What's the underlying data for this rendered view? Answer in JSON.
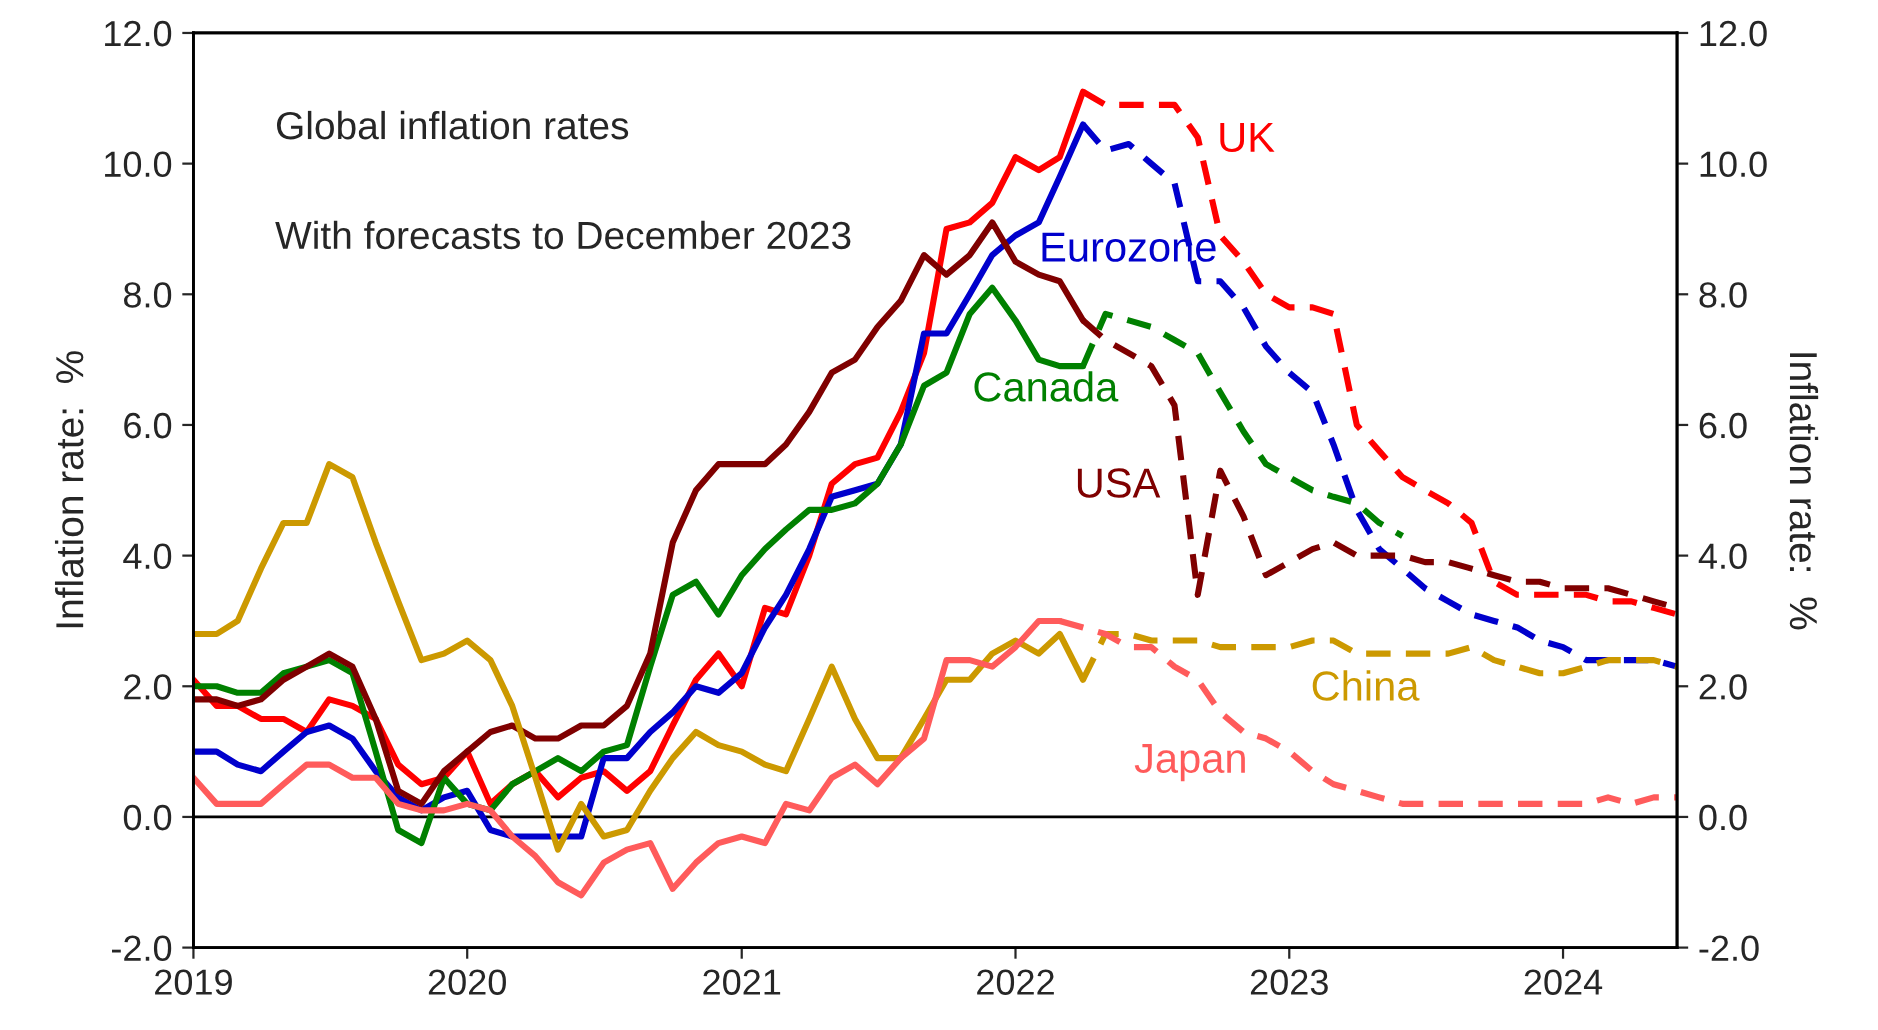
{
  "chart_data": {
    "type": "line",
    "title": "Global inflation rates",
    "subtitle": "With forecasts to December 2023",
    "ylabel": "Inflation rate:  %",
    "y2label": "Inflation rate:  %",
    "x": [
      "2019-01",
      "2019-02",
      "2019-03",
      "2019-04",
      "2019-05",
      "2019-06",
      "2019-07",
      "2019-08",
      "2019-09",
      "2019-10",
      "2019-11",
      "2019-12",
      "2020-01",
      "2020-02",
      "2020-03",
      "2020-04",
      "2020-05",
      "2020-06",
      "2020-07",
      "2020-08",
      "2020-09",
      "2020-10",
      "2020-11",
      "2020-12",
      "2021-01",
      "2021-02",
      "2021-03",
      "2021-04",
      "2021-05",
      "2021-06",
      "2021-07",
      "2021-08",
      "2021-09",
      "2021-10",
      "2021-11",
      "2021-12",
      "2022-01",
      "2022-02",
      "2022-03",
      "2022-04",
      "2022-05",
      "2022-06",
      "2022-07",
      "2022-08",
      "2022-09",
      "2022-10",
      "2022-11",
      "2022-12",
      "2023-01",
      "2023-02",
      "2023-03",
      "2023-04",
      "2023-05",
      "2023-06",
      "2023-07",
      "2023-08",
      "2023-09",
      "2023-10",
      "2023-11",
      "2023-12",
      "2024-01",
      "2024-02",
      "2024-03",
      "2024-04",
      "2024-05",
      "2024-06"
    ],
    "series": [
      {
        "name": "UK",
        "color": "#ff0000",
        "line_style": "solid",
        "values": [
          2.1,
          1.7,
          1.7,
          1.5,
          1.5,
          1.3,
          1.8,
          1.7,
          1.5,
          0.8,
          0.5,
          0.6,
          1.0,
          0.2,
          0.5,
          0.7,
          0.3,
          0.6,
          0.7,
          0.4,
          0.7,
          1.4,
          2.1,
          2.5,
          2.0,
          3.2,
          3.1,
          4.0,
          5.1,
          5.4,
          5.5,
          6.2,
          7.1,
          9.0,
          9.1,
          9.4,
          10.1,
          9.9,
          10.1,
          11.1,
          null,
          null,
          null,
          null,
          null,
          null,
          null,
          null,
          null,
          null,
          null,
          null,
          null,
          null,
          null,
          null,
          null,
          null,
          null,
          null,
          null,
          null,
          null,
          null,
          null,
          null
        ]
      },
      {
        "name": "Eurozone",
        "color": "#0000cc",
        "line_style": "solid",
        "values": [
          1.0,
          1.0,
          0.8,
          0.7,
          1.0,
          1.3,
          1.4,
          1.2,
          0.7,
          0.3,
          0.1,
          0.3,
          0.4,
          -0.2,
          -0.3,
          -0.3,
          -0.3,
          -0.3,
          0.9,
          0.9,
          1.3,
          1.6,
          2.0,
          1.9,
          2.2,
          2.9,
          3.4,
          4.1,
          4.9,
          5.0,
          5.1,
          5.7,
          7.4,
          7.4,
          8.0,
          8.6,
          8.9,
          9.1,
          9.8,
          10.6,
          null,
          null,
          null,
          null,
          null,
          null,
          null,
          null,
          null,
          null,
          null,
          null,
          null,
          null,
          null,
          null,
          null,
          null,
          null,
          null,
          null,
          null,
          null,
          null,
          null,
          null
        ]
      },
      {
        "name": "Canada",
        "color": "#008000",
        "line_style": "solid",
        "values": [
          2.0,
          2.0,
          1.9,
          1.9,
          2.2,
          2.3,
          2.4,
          2.2,
          1.0,
          -0.2,
          -0.4,
          0.6,
          0.2,
          0.1,
          0.5,
          0.7,
          0.9,
          0.7,
          1.0,
          1.1,
          2.3,
          3.4,
          3.6,
          3.1,
          3.7,
          4.1,
          4.4,
          4.7,
          4.7,
          4.8,
          5.1,
          5.7,
          6.6,
          6.8,
          7.7,
          8.1,
          7.6,
          7.0,
          6.9,
          6.9,
          null,
          null,
          null,
          null,
          null,
          null,
          null,
          null,
          null,
          null,
          null,
          null,
          null,
          null,
          null,
          null,
          null,
          null,
          null,
          null,
          null,
          null,
          null,
          null,
          null,
          null
        ]
      },
      {
        "name": "USA",
        "color": "#7f0000",
        "line_style": "solid",
        "values": [
          1.8,
          1.8,
          1.7,
          1.8,
          2.1,
          2.3,
          2.5,
          2.3,
          1.5,
          0.4,
          0.2,
          0.7,
          1.0,
          1.3,
          1.4,
          1.2,
          1.2,
          1.4,
          1.4,
          1.7,
          2.5,
          4.2,
          5.0,
          5.4,
          5.4,
          5.4,
          5.7,
          6.2,
          6.8,
          7.0,
          7.5,
          7.9,
          8.6,
          8.3,
          8.6,
          9.1,
          8.5,
          8.3,
          8.2,
          7.6,
          null,
          null,
          null,
          null,
          null,
          null,
          null,
          null,
          null,
          null,
          null,
          null,
          null,
          null,
          null,
          null,
          null,
          null,
          null,
          null,
          null,
          null,
          null,
          null,
          null,
          null
        ]
      },
      {
        "name": "China",
        "color": "#cc9900",
        "line_style": "solid",
        "values": [
          2.8,
          2.8,
          3.0,
          3.8,
          4.5,
          4.5,
          5.4,
          5.2,
          4.2,
          3.3,
          2.4,
          2.5,
          2.7,
          2.4,
          1.7,
          0.6,
          -0.5,
          0.2,
          -0.3,
          -0.2,
          0.4,
          0.9,
          1.3,
          1.1,
          1.0,
          0.8,
          0.7,
          1.5,
          2.3,
          1.5,
          0.9,
          0.9,
          1.5,
          2.1,
          2.1,
          2.5,
          2.7,
          2.5,
          2.8,
          2.1,
          null,
          null,
          null,
          null,
          null,
          null,
          null,
          null,
          null,
          null,
          null,
          null,
          null,
          null,
          null,
          null,
          null,
          null,
          null,
          null,
          null,
          null,
          null,
          null,
          null,
          null
        ]
      },
      {
        "name": "Japan",
        "color": "#ff5b5b",
        "line_style": "solid",
        "values": [
          0.6,
          0.2,
          0.2,
          0.2,
          0.5,
          0.8,
          0.8,
          0.6,
          0.6,
          0.2,
          0.1,
          0.1,
          0.2,
          0.1,
          -0.3,
          -0.6,
          -1.0,
          -1.2,
          -0.7,
          -0.5,
          -0.4,
          -1.1,
          -0.7,
          -0.4,
          -0.3,
          -0.4,
          0.2,
          0.1,
          0.6,
          0.8,
          0.5,
          0.9,
          1.2,
          2.4,
          2.4,
          2.3,
          2.6,
          3.0,
          3.0,
          null,
          null,
          null,
          null,
          null,
          null,
          null,
          null,
          null,
          null,
          null,
          null,
          null,
          null,
          null,
          null,
          null,
          null,
          null,
          null,
          null,
          null,
          null,
          null,
          null,
          null,
          null
        ]
      },
      {
        "color": "#ff0000",
        "line_style": "dashed",
        "values": [
          null,
          null,
          null,
          null,
          null,
          null,
          null,
          null,
          null,
          null,
          null,
          null,
          null,
          null,
          null,
          null,
          null,
          null,
          null,
          null,
          null,
          null,
          null,
          null,
          null,
          null,
          null,
          null,
          null,
          null,
          null,
          null,
          null,
          null,
          null,
          null,
          null,
          null,
          null,
          11.1,
          10.9,
          10.9,
          10.9,
          10.9,
          10.4,
          8.9,
          8.5,
          8.0,
          7.8,
          7.8,
          7.7,
          6.0,
          5.6,
          5.2,
          5.0,
          4.8,
          4.5,
          3.6,
          3.4,
          3.4,
          3.4,
          3.4,
          3.3,
          3.3,
          3.2,
          3.1
        ]
      },
      {
        "color": "#0000cc",
        "line_style": "dashed",
        "values": [
          null,
          null,
          null,
          null,
          null,
          null,
          null,
          null,
          null,
          null,
          null,
          null,
          null,
          null,
          null,
          null,
          null,
          null,
          null,
          null,
          null,
          null,
          null,
          null,
          null,
          null,
          null,
          null,
          null,
          null,
          null,
          null,
          null,
          null,
          null,
          null,
          null,
          null,
          null,
          10.6,
          10.2,
          10.3,
          10.0,
          9.7,
          8.2,
          8.2,
          7.8,
          7.2,
          6.8,
          6.5,
          5.7,
          4.7,
          4.1,
          3.8,
          3.5,
          3.3,
          3.1,
          3.0,
          2.9,
          2.7,
          2.6,
          2.4,
          2.4,
          2.4,
          2.4,
          2.3
        ]
      },
      {
        "color": "#008000",
        "line_style": "dashed",
        "values": [
          null,
          null,
          null,
          null,
          null,
          null,
          null,
          null,
          null,
          null,
          null,
          null,
          null,
          null,
          null,
          null,
          null,
          null,
          null,
          null,
          null,
          null,
          null,
          null,
          null,
          null,
          null,
          null,
          null,
          null,
          null,
          null,
          null,
          null,
          null,
          null,
          null,
          null,
          null,
          6.9,
          7.7,
          7.6,
          7.5,
          7.3,
          7.1,
          6.5,
          5.9,
          5.4,
          5.2,
          5.0,
          4.9,
          4.8,
          4.5,
          4.3,
          null,
          null,
          null,
          null,
          null,
          null,
          null,
          null,
          null,
          null,
          null,
          null
        ]
      },
      {
        "color": "#7f0000",
        "line_style": "dashed",
        "values": [
          null,
          null,
          null,
          null,
          null,
          null,
          null,
          null,
          null,
          null,
          null,
          null,
          null,
          null,
          null,
          null,
          null,
          null,
          null,
          null,
          null,
          null,
          null,
          null,
          null,
          null,
          null,
          null,
          null,
          null,
          null,
          null,
          null,
          null,
          null,
          null,
          null,
          null,
          null,
          7.6,
          7.3,
          7.1,
          6.9,
          6.3,
          3.4,
          5.3,
          4.6,
          3.7,
          3.9,
          4.1,
          4.2,
          4.0,
          4.0,
          4.0,
          3.9,
          3.9,
          3.8,
          3.7,
          3.6,
          3.6,
          3.5,
          3.5,
          3.5,
          3.4,
          3.3,
          3.2
        ]
      },
      {
        "color": "#cc9900",
        "line_style": "dashed",
        "values": [
          null,
          null,
          null,
          null,
          null,
          null,
          null,
          null,
          null,
          null,
          null,
          null,
          null,
          null,
          null,
          null,
          null,
          null,
          null,
          null,
          null,
          null,
          null,
          null,
          null,
          null,
          null,
          null,
          null,
          null,
          null,
          null,
          null,
          null,
          null,
          null,
          null,
          null,
          null,
          2.1,
          2.8,
          2.8,
          2.7,
          2.7,
          2.7,
          2.6,
          2.6,
          2.6,
          2.6,
          2.7,
          2.7,
          2.5,
          2.5,
          2.5,
          2.5,
          2.5,
          2.6,
          2.4,
          2.3,
          2.2,
          2.2,
          2.3,
          2.4,
          2.4,
          2.4,
          2.3
        ]
      },
      {
        "color": "#ff5b5b",
        "line_style": "dashed",
        "values": [
          null,
          null,
          null,
          null,
          null,
          null,
          null,
          null,
          null,
          null,
          null,
          null,
          null,
          null,
          null,
          null,
          null,
          null,
          null,
          null,
          null,
          null,
          null,
          null,
          null,
          null,
          null,
          null,
          null,
          null,
          null,
          null,
          null,
          null,
          null,
          null,
          null,
          null,
          3.0,
          2.9,
          2.8,
          2.6,
          2.6,
          2.3,
          2.1,
          1.6,
          1.3,
          1.2,
          1.0,
          0.7,
          0.5,
          0.4,
          0.3,
          0.2,
          0.2,
          0.2,
          0.2,
          0.2,
          0.2,
          0.2,
          0.2,
          0.2,
          0.3,
          0.2,
          0.3,
          0.3
        ]
      }
    ],
    "ref_lines": [
      {
        "axis": "y",
        "value": 0,
        "color": "#000000"
      }
    ],
    "xlim": [
      "2019-01",
      "2024-06"
    ],
    "xticks": [
      {
        "value": "2019-01",
        "label": "2019"
      },
      {
        "value": "2020-01",
        "label": "2020"
      },
      {
        "value": "2021-01",
        "label": "2021"
      },
      {
        "value": "2022-01",
        "label": "2022"
      },
      {
        "value": "2023-01",
        "label": "2023"
      },
      {
        "value": "2024-01",
        "label": "2024"
      }
    ],
    "ylim": [
      -2,
      12
    ],
    "yticks": [
      {
        "value": -2,
        "label": "-2.0"
      },
      {
        "value": 0,
        "label": "0.0"
      },
      {
        "value": 2,
        "label": "2.0"
      },
      {
        "value": 4,
        "label": "4.0"
      },
      {
        "value": 6,
        "label": "6.0"
      },
      {
        "value": 8,
        "label": "8.0"
      },
      {
        "value": 10,
        "label": "10.0"
      },
      {
        "value": 12,
        "label": "12.0"
      }
    ],
    "y2lim": [
      -2,
      12
    ],
    "y2ticks": [
      {
        "value": -2,
        "label": "-2.0"
      },
      {
        "value": 0,
        "label": "0.0"
      },
      {
        "value": 2,
        "label": "2.0"
      },
      {
        "value": 4,
        "label": "4.0"
      },
      {
        "value": 6,
        "label": "6.0"
      },
      {
        "value": 8,
        "label": "8.0"
      },
      {
        "value": 10,
        "label": "10.0"
      },
      {
        "value": 12,
        "label": "12.0"
      }
    ],
    "grid": false,
    "legend": false
  }
}
